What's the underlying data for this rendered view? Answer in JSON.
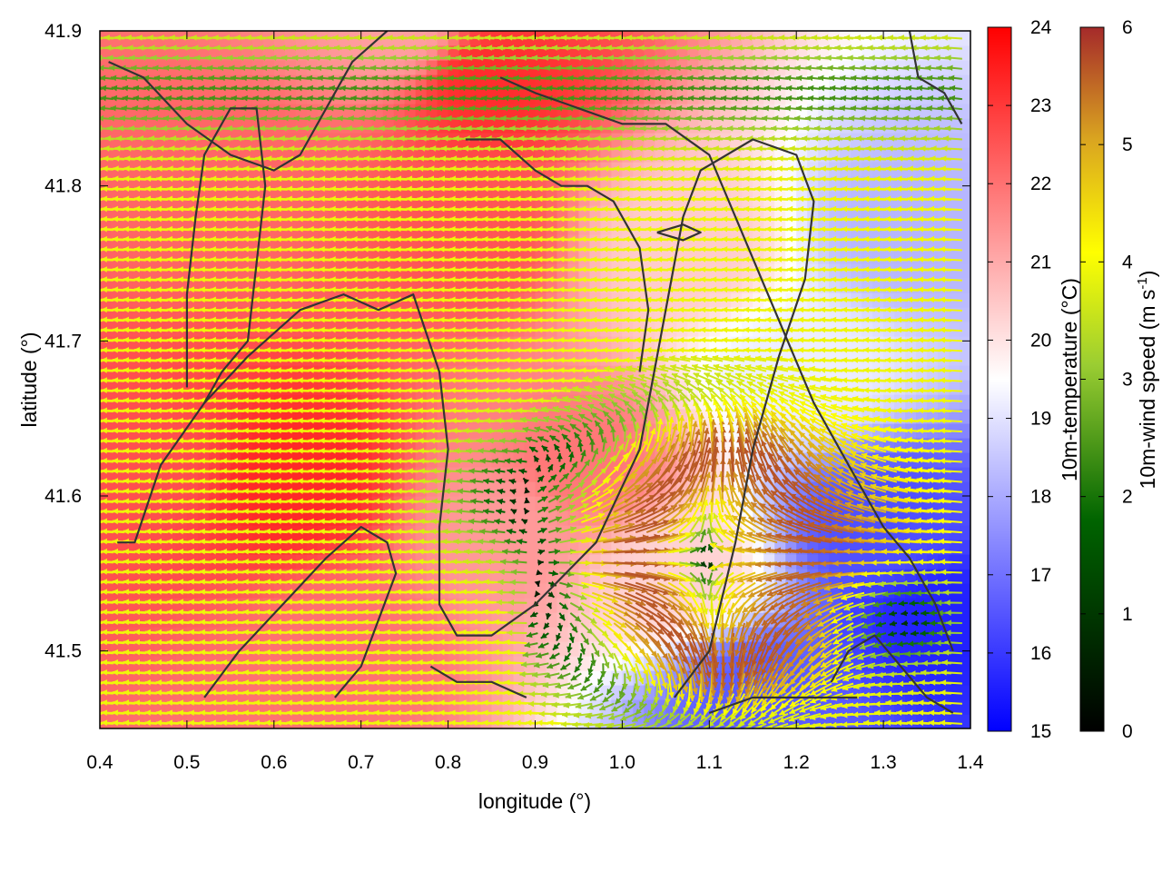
{
  "chart_data": {
    "type": "heatmap",
    "title": "",
    "xlabel": "longitude (°)",
    "ylabel": "latitude (°)",
    "xlim": [
      0.4,
      1.4
    ],
    "ylim": [
      41.45,
      41.9
    ],
    "x_ticks": [
      {
        "value": 0.4,
        "label": "0.4"
      },
      {
        "value": 0.5,
        "label": "0.5"
      },
      {
        "value": 0.6,
        "label": "0.6"
      },
      {
        "value": 0.7,
        "label": "0.7"
      },
      {
        "value": 0.8,
        "label": "0.8"
      },
      {
        "value": 0.9,
        "label": "0.9"
      },
      {
        "value": 1.0,
        "label": "1.0"
      },
      {
        "value": 1.1,
        "label": "1.1"
      },
      {
        "value": 1.2,
        "label": "1.2"
      },
      {
        "value": 1.3,
        "label": "1.3"
      },
      {
        "value": 1.4,
        "label": "1.4"
      }
    ],
    "y_ticks": [
      {
        "value": 41.5,
        "label": "41.5"
      },
      {
        "value": 41.6,
        "label": "41.6"
      },
      {
        "value": 41.7,
        "label": "41.7"
      },
      {
        "value": 41.8,
        "label": "41.8"
      },
      {
        "value": 41.9,
        "label": "41.9"
      }
    ],
    "temperature": {
      "label": "10m-temperature (°C)",
      "range": [
        15,
        24
      ],
      "ticks": [
        {
          "value": 15,
          "label": "15"
        },
        {
          "value": 16,
          "label": "16"
        },
        {
          "value": 17,
          "label": "17"
        },
        {
          "value": 18,
          "label": "18"
        },
        {
          "value": 19,
          "label": "19"
        },
        {
          "value": 20,
          "label": "20"
        },
        {
          "value": 21,
          "label": "21"
        },
        {
          "value": 22,
          "label": "22"
        },
        {
          "value": 23,
          "label": "23"
        },
        {
          "value": 24,
          "label": "24"
        }
      ],
      "colormap": [
        "#0000ff",
        "#ffffff",
        "#ff0000"
      ],
      "field_anchors": [
        {
          "lon": 0.45,
          "lat": 41.62,
          "t": 22.6
        },
        {
          "lon": 0.62,
          "lat": 41.61,
          "t": 23.3
        },
        {
          "lon": 0.55,
          "lat": 41.8,
          "t": 22.2
        },
        {
          "lon": 0.84,
          "lat": 41.87,
          "t": 23.2
        },
        {
          "lon": 0.82,
          "lat": 41.77,
          "t": 22.5
        },
        {
          "lon": 0.95,
          "lat": 41.62,
          "t": 21.9
        },
        {
          "lon": 0.87,
          "lat": 41.58,
          "t": 21.3
        },
        {
          "lon": 1.07,
          "lat": 41.76,
          "t": 20.4
        },
        {
          "lon": 1.3,
          "lat": 41.58,
          "t": 16.4
        },
        {
          "lon": 1.37,
          "lat": 41.52,
          "t": 15.6
        },
        {
          "lon": 1.16,
          "lat": 41.47,
          "t": 16.6
        },
        {
          "lon": 1.33,
          "lat": 41.77,
          "t": 18.2
        },
        {
          "lon": 1.2,
          "lat": 41.68,
          "t": 19.2
        },
        {
          "lon": 1.06,
          "lat": 41.55,
          "t": 20.3
        },
        {
          "lon": 0.75,
          "lat": 41.9,
          "t": 21.2
        },
        {
          "lon": 0.68,
          "lat": 41.5,
          "t": 22.0
        }
      ]
    },
    "wind_speed": {
      "label": "10m-wind speed (m s-1)",
      "label_text": "10m-wind speed (m s",
      "label_sup": "-1",
      "label_end": ")",
      "range": [
        0,
        6
      ],
      "ticks": [
        {
          "value": 0,
          "label": "0"
        },
        {
          "value": 1,
          "label": "1"
        },
        {
          "value": 2,
          "label": "2"
        },
        {
          "value": 3,
          "label": "3"
        },
        {
          "value": 4,
          "label": "4"
        },
        {
          "value": 5,
          "label": "5"
        },
        {
          "value": 6,
          "label": "6"
        }
      ],
      "colormap": [
        "#000000",
        "#006400",
        "#9acd32",
        "#ffff00",
        "#daa520",
        "#a52a2a"
      ],
      "vectors": "field of wind arrows on a regular longitude/latitude grid; speeds 0-6 m s-1, mostly easterly flow (arrows pointing west), strongest 5-6 m s-1 in the south-east quadrant"
    },
    "contours": [
      {
        "name": "contour-a",
        "points": [
          [
            0.42,
            41.57
          ],
          [
            0.44,
            41.57
          ],
          [
            0.47,
            41.62
          ],
          [
            0.52,
            41.66
          ],
          [
            0.57,
            41.69
          ],
          [
            0.63,
            41.72
          ],
          [
            0.68,
            41.73
          ],
          [
            0.72,
            41.72
          ],
          [
            0.76,
            41.73
          ],
          [
            0.79,
            41.68
          ],
          [
            0.8,
            41.63
          ],
          [
            0.79,
            41.58
          ],
          [
            0.79,
            41.53
          ],
          [
            0.81,
            41.51
          ],
          [
            0.85,
            41.51
          ],
          [
            0.9,
            41.53
          ],
          [
            0.97,
            41.57
          ],
          [
            1.02,
            41.63
          ],
          [
            1.04,
            41.69
          ],
          [
            1.06,
            41.75
          ],
          [
            1.07,
            41.78
          ],
          [
            1.09,
            41.81
          ],
          [
            1.15,
            41.83
          ],
          [
            1.2,
            41.82
          ],
          [
            1.22,
            41.79
          ],
          [
            1.21,
            41.74
          ],
          [
            1.18,
            41.69
          ],
          [
            1.15,
            41.63
          ],
          [
            1.13,
            41.57
          ],
          [
            1.1,
            41.5
          ],
          [
            1.06,
            41.47
          ]
        ]
      },
      {
        "name": "contour-b",
        "points": [
          [
            0.52,
            41.47
          ],
          [
            0.56,
            41.5
          ],
          [
            0.61,
            41.53
          ],
          [
            0.66,
            41.56
          ],
          [
            0.7,
            41.58
          ],
          [
            0.73,
            41.57
          ],
          [
            0.74,
            41.55
          ],
          [
            0.72,
            41.52
          ],
          [
            0.7,
            41.49
          ],
          [
            0.67,
            41.47
          ]
        ]
      },
      {
        "name": "contour-c",
        "points": [
          [
            0.41,
            41.88
          ],
          [
            0.45,
            41.87
          ],
          [
            0.5,
            41.84
          ],
          [
            0.55,
            41.82
          ],
          [
            0.6,
            41.81
          ],
          [
            0.63,
            41.82
          ],
          [
            0.66,
            41.85
          ],
          [
            0.69,
            41.88
          ],
          [
            0.73,
            41.9
          ]
        ]
      },
      {
        "name": "contour-d",
        "points": [
          [
            0.5,
            41.67
          ],
          [
            0.5,
            41.73
          ],
          [
            0.51,
            41.78
          ],
          [
            0.52,
            41.82
          ],
          [
            0.55,
            41.85
          ],
          [
            0.58,
            41.85
          ],
          [
            0.59,
            41.8
          ],
          [
            0.58,
            41.75
          ],
          [
            0.57,
            41.7
          ],
          [
            0.54,
            41.68
          ],
          [
            0.52,
            41.66
          ]
        ]
      },
      {
        "name": "contour-e",
        "points": [
          [
            0.86,
            41.87
          ],
          [
            0.9,
            41.86
          ],
          [
            0.95,
            41.85
          ],
          [
            1.0,
            41.84
          ],
          [
            1.05,
            41.84
          ],
          [
            1.1,
            41.82
          ],
          [
            1.13,
            41.78
          ],
          [
            1.16,
            41.74
          ],
          [
            1.19,
            41.7
          ],
          [
            1.22,
            41.66
          ],
          [
            1.26,
            41.62
          ],
          [
            1.3,
            41.58
          ],
          [
            1.33,
            41.56
          ],
          [
            1.36,
            41.53
          ],
          [
            1.38,
            41.5
          ]
        ]
      },
      {
        "name": "contour-f",
        "points": [
          [
            0.82,
            41.83
          ],
          [
            0.86,
            41.83
          ],
          [
            0.9,
            41.81
          ],
          [
            0.93,
            41.8
          ],
          [
            0.96,
            41.8
          ],
          [
            0.99,
            41.79
          ],
          [
            1.02,
            41.76
          ],
          [
            1.03,
            41.72
          ],
          [
            1.02,
            41.68
          ]
        ]
      },
      {
        "name": "contour-g",
        "points": [
          [
            1.24,
            41.48
          ],
          [
            1.26,
            41.5
          ],
          [
            1.29,
            41.51
          ],
          [
            1.32,
            41.49
          ],
          [
            1.35,
            41.47
          ],
          [
            1.38,
            41.46
          ]
        ]
      },
      {
        "name": "contour-h",
        "points": [
          [
            1.1,
            41.46
          ],
          [
            1.15,
            41.47
          ],
          [
            1.2,
            41.47
          ],
          [
            1.24,
            41.47
          ],
          [
            1.27,
            41.47
          ]
        ]
      },
      {
        "name": "contour-i",
        "points": [
          [
            1.33,
            41.9
          ],
          [
            1.34,
            41.87
          ],
          [
            1.37,
            41.86
          ],
          [
            1.39,
            41.84
          ]
        ]
      },
      {
        "name": "contour-j",
        "points": [
          [
            1.04,
            41.77
          ],
          [
            1.07,
            41.775
          ],
          [
            1.09,
            41.77
          ],
          [
            1.07,
            41.765
          ],
          [
            1.04,
            41.77
          ]
        ]
      },
      {
        "name": "contour-k",
        "points": [
          [
            0.78,
            41.49
          ],
          [
            0.81,
            41.48
          ],
          [
            0.85,
            41.48
          ],
          [
            0.89,
            41.47
          ]
        ]
      }
    ]
  }
}
